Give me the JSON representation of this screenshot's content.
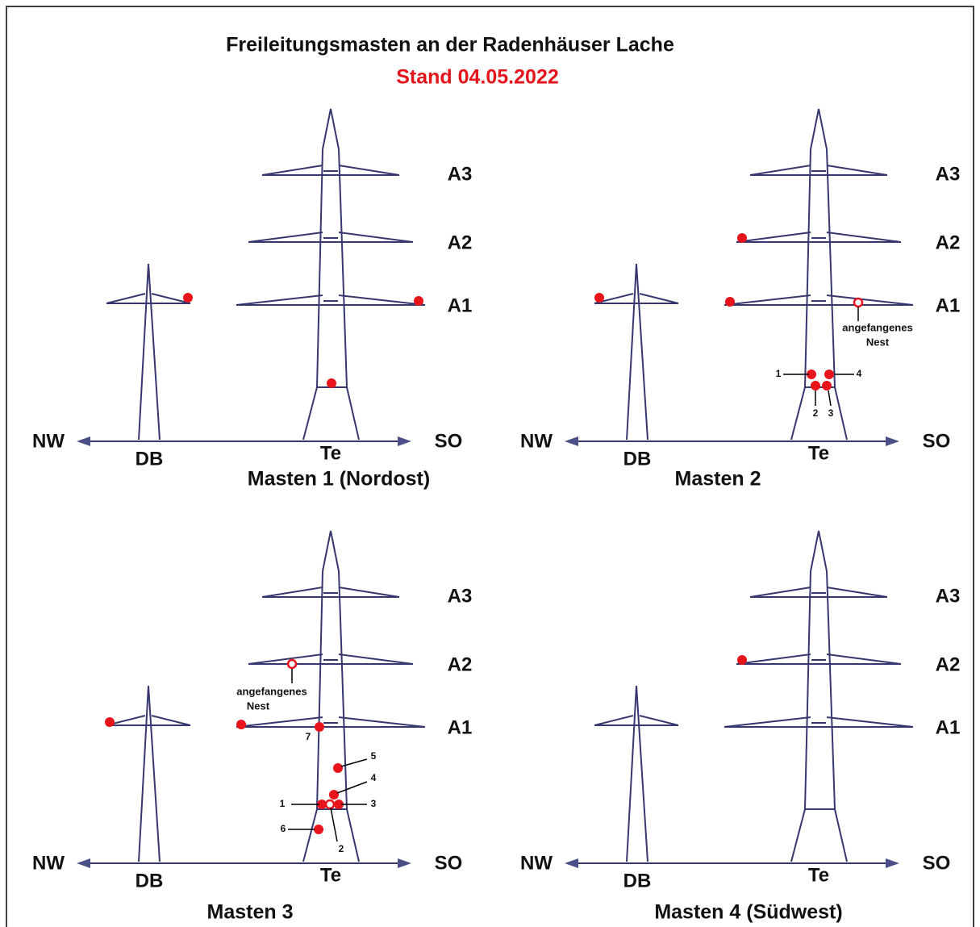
{
  "title": "Freileitungsmasten an der Radenhäuser Lache",
  "subtitle": "Stand 04.05.2022",
  "panels": [
    {
      "caption": "Masten 1 (Nordost)",
      "arms": [
        "A3",
        "A2",
        "A1"
      ],
      "left": "NW",
      "right": "SO",
      "small_tower": "DB",
      "big_tower": "Te",
      "notes": []
    },
    {
      "caption": "Masten 2",
      "arms": [
        "A3",
        "A2",
        "A1"
      ],
      "left": "NW",
      "right": "SO",
      "small_tower": "DB",
      "big_tower": "Te",
      "notes": [
        "angefangenes",
        "Nest",
        "1",
        "4",
        "2",
        "3"
      ]
    },
    {
      "caption": "Masten 3",
      "arms": [
        "A3",
        "A2",
        "A1"
      ],
      "left": "NW",
      "right": "SO",
      "small_tower": "DB",
      "big_tower": "Te",
      "notes": [
        "angefangenes",
        "Nest",
        "7",
        "5",
        "4",
        "1",
        "3",
        "6",
        "2"
      ]
    },
    {
      "caption": "Masten 4 (Südwest)",
      "arms": [
        "A3",
        "A2",
        "A1"
      ],
      "left": "NW",
      "right": "SO",
      "small_tower": "DB",
      "big_tower": "Te",
      "notes": []
    }
  ]
}
